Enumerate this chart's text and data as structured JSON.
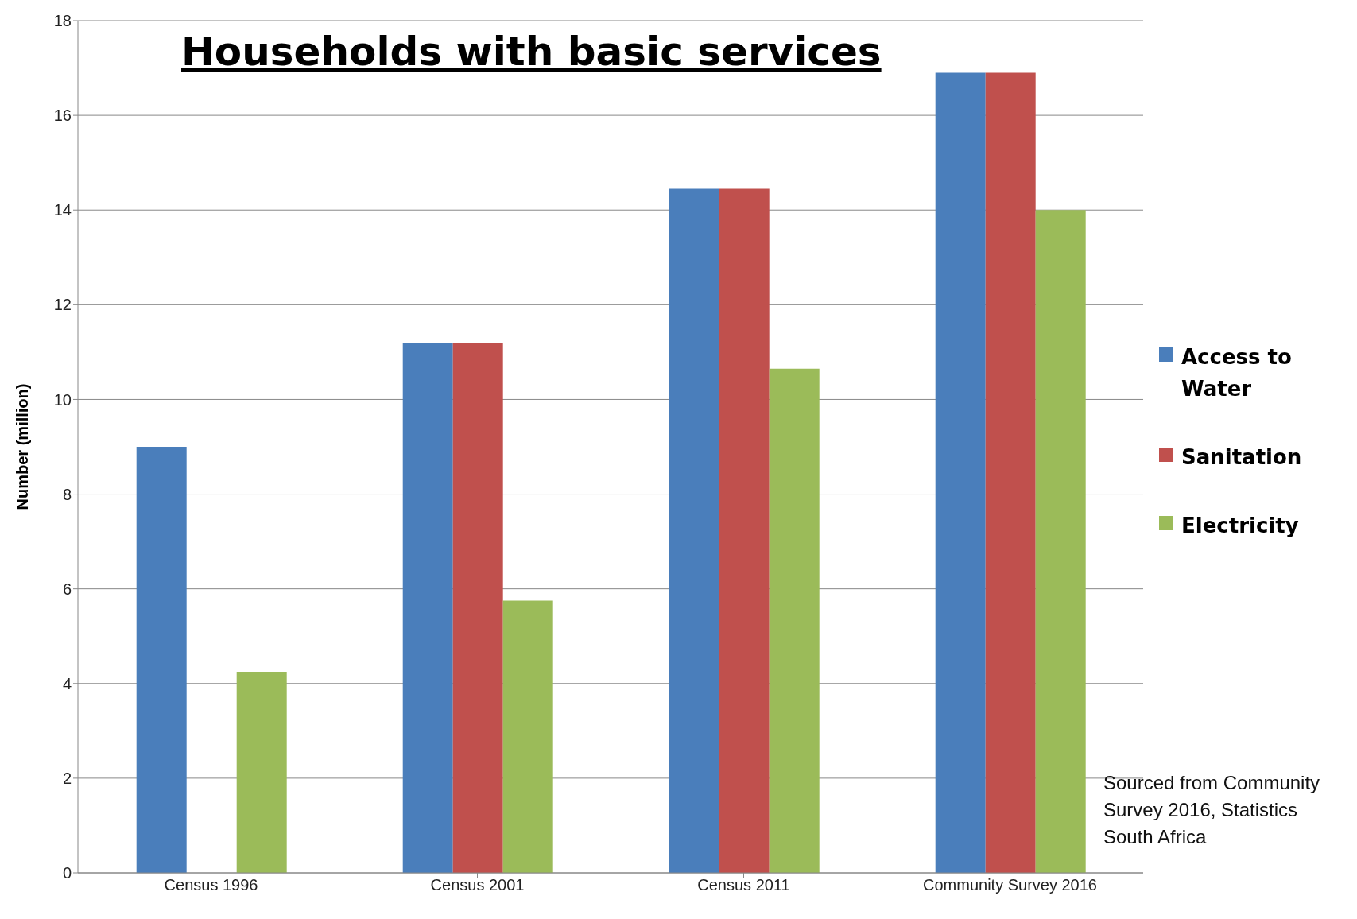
{
  "chart_data": {
    "type": "bar",
    "title": "Households with basic services",
    "ylabel": "Number (million)",
    "categories": [
      "Census 1996",
      "Census 2001",
      "Census 2011",
      "Community Survey 2016"
    ],
    "series": [
      {
        "name": "Access to Water",
        "color": "#4a7ebb",
        "values": [
          9.0,
          11.2,
          14.45,
          16.9
        ]
      },
      {
        "name": "Sanitation",
        "color": "#c0504d",
        "values": [
          null,
          11.2,
          14.45,
          16.9
        ]
      },
      {
        "name": "Electricity",
        "color": "#9bbb59",
        "values": [
          4.25,
          5.75,
          10.65,
          14.0
        ]
      }
    ],
    "ylim": [
      0,
      18
    ],
    "yticks": [
      0,
      2,
      4,
      6,
      8,
      10,
      12,
      14,
      16,
      18
    ],
    "grid": "y",
    "legend": "right",
    "annotations": [
      "Sourced from Community Survey 2016, Statistics South Africa"
    ]
  }
}
